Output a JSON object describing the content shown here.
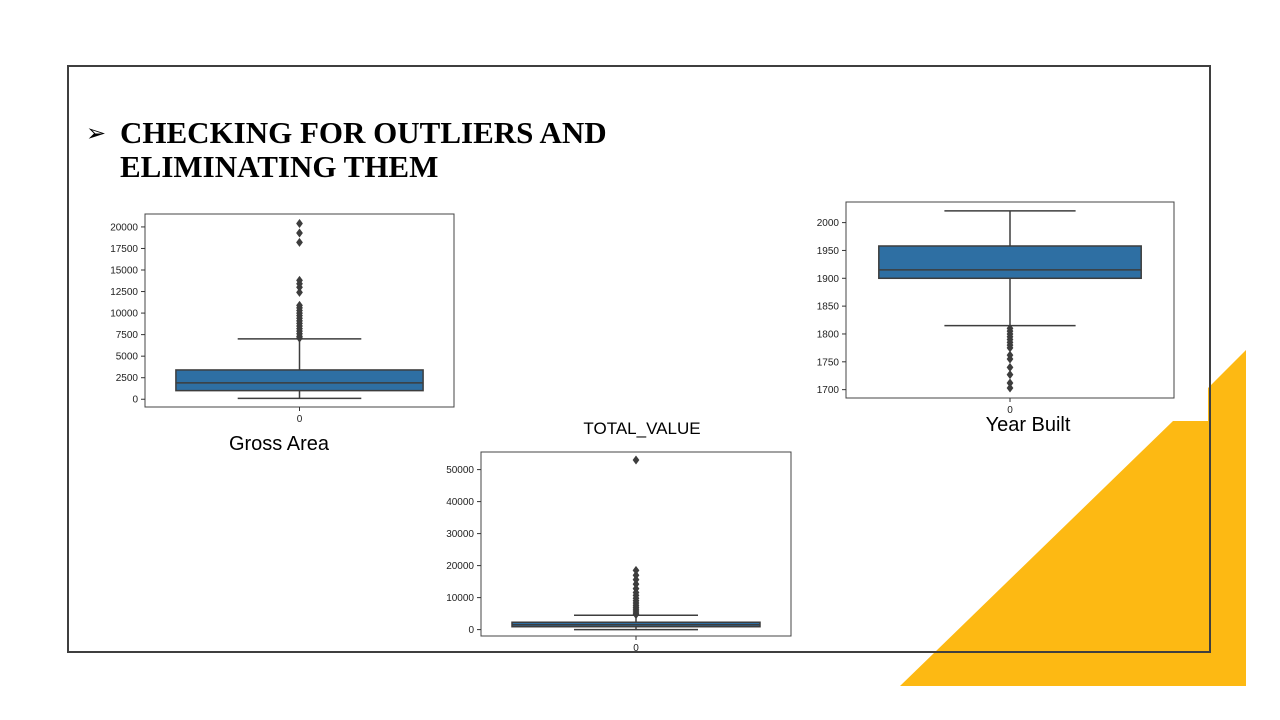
{
  "slide": {
    "bullet_icon": "arrow-bullet-icon",
    "title": "CHECKING FOR OUTLIERS AND ELIMINATING THEM",
    "accent_color": "#FDB913",
    "box_color": "#2E6FA3"
  },
  "chart_data": [
    {
      "type": "box",
      "title": "",
      "caption": "Gross Area",
      "xlabel": "",
      "ylabel": "",
      "categories": [
        "0"
      ],
      "ylim": [
        -900,
        21500
      ],
      "yticks": [
        0,
        2500,
        5000,
        7500,
        10000,
        12500,
        15000,
        17500,
        20000
      ],
      "box": {
        "whisker_low": 100,
        "q1": 1000,
        "median": 1900,
        "q3": 3400,
        "whisker_high": 7000
      },
      "outliers": [
        7100,
        7300,
        7600,
        7900,
        8200,
        8500,
        8800,
        9100,
        9400,
        9700,
        10000,
        10300,
        10600,
        10900,
        12400,
        13000,
        13400,
        13800,
        18200,
        19300,
        20400
      ]
    },
    {
      "type": "box",
      "title": "TOTAL_VALUE",
      "caption": "",
      "xlabel": "",
      "ylabel": "",
      "categories": [
        "0"
      ],
      "ylim": [
        -2000,
        55500
      ],
      "yticks": [
        0,
        10000,
        20000,
        30000,
        40000,
        50000
      ],
      "box": {
        "whisker_low": 0,
        "q1": 900,
        "median": 1500,
        "q3": 2300,
        "whisker_high": 4500
      },
      "outliers": [
        4700,
        5200,
        5800,
        6400,
        7000,
        7600,
        8300,
        9000,
        9800,
        10700,
        11600,
        12800,
        14200,
        15600,
        17000,
        18500,
        53000
      ]
    },
    {
      "type": "box",
      "title": "",
      "caption": "Year Built",
      "xlabel": "",
      "ylabel": "",
      "categories": [
        "0"
      ],
      "ylim": [
        1685,
        2037
      ],
      "yticks": [
        1700,
        1750,
        1800,
        1850,
        1900,
        1950,
        2000
      ],
      "box": {
        "whisker_low": 1815,
        "q1": 1900,
        "median": 1915,
        "q3": 1958,
        "whisker_high": 2021
      },
      "outliers": [
        1810,
        1805,
        1800,
        1795,
        1790,
        1785,
        1780,
        1775,
        1762,
        1755,
        1740,
        1727,
        1712,
        1703
      ]
    }
  ]
}
